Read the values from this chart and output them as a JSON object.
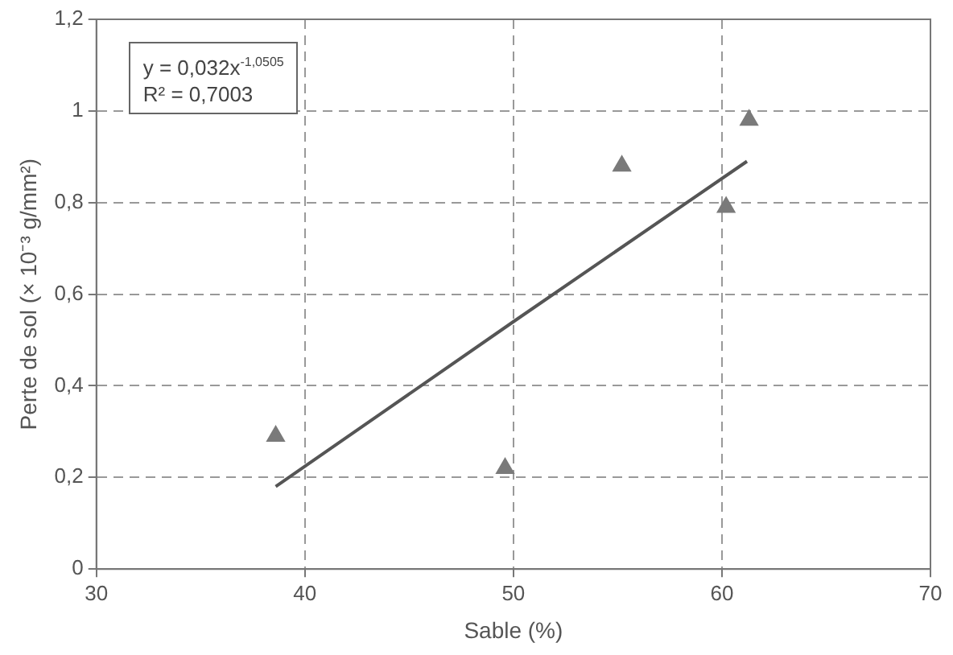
{
  "chart_data": {
    "type": "scatter",
    "xlabel": "Sable (%)",
    "ylabel": "Perte de sol (× 10⁻³ g/mm²)",
    "annotations": [
      "y = 0,032x$^{-1,0505}$",
      "R² = 0,7003"
    ],
    "series": [
      {
        "type": "scatter",
        "color": "#7a7a7a",
        "marker": "triangle",
        "x": [
          38.6,
          49.6,
          55.2,
          60.2,
          61.3
        ],
        "values": [
          0.29,
          0.22,
          0.88,
          0.79,
          0.98
        ]
      },
      {
        "type": "line",
        "color": "#555555",
        "marker": "none",
        "line_style": "solid",
        "x": [
          38.6,
          50,
          61.2
        ],
        "values": [
          0.18,
          0.54,
          0.89
        ]
      }
    ],
    "xlim": [
      30,
      70
    ],
    "xticks": [
      30,
      40,
      50,
      60,
      70
    ],
    "ylim": [
      0,
      1.2
    ],
    "yticks": [
      0,
      {
        "value": 0.2,
        "label": "0,2"
      },
      {
        "value": 0.4,
        "label": "0,4"
      },
      {
        "value": 0.6,
        "label": "0,6"
      },
      {
        "value": 0.8,
        "label": "0,8"
      },
      1,
      {
        "value": 1.2,
        "label": "1,2"
      }
    ],
    "grid": true
  }
}
